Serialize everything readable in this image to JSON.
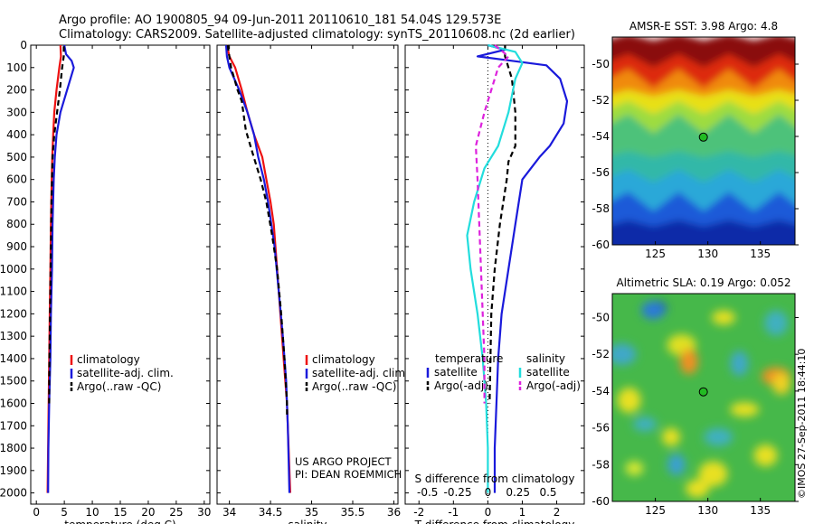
{
  "header": {
    "line1": "Argo profile: AO 1900805_94 09-Jun-2011 20110610_181 54.04S 129.573E",
    "line2": "Climatology: CARS2009. Satellite-adjusted climatology: synTS_20110608.nc (2d earlier)"
  },
  "credits": {
    "project": "US ARGO PROJECT",
    "pi": "PI: DEAN ROEMMICH",
    "stamp": "©IMOS 27-Sep-2011 18:44:10"
  },
  "colors": {
    "climatology": "#ee1111",
    "satellite_adj": "#1a1adb",
    "argo": "#000000",
    "sat_salinity": "#22dddd",
    "argo_salinity": "#dd22dd",
    "marker": "#22bb22"
  },
  "chart_data": [
    {
      "id": "temperature",
      "type": "line",
      "xlabel": "temperature (deg C)",
      "ylabel": "",
      "xlim": [
        -1,
        31
      ],
      "ylim": [
        2050,
        0
      ],
      "xticks": [
        0,
        5,
        10,
        15,
        20,
        25,
        30
      ],
      "yticks": [
        0,
        100,
        200,
        300,
        400,
        500,
        600,
        700,
        800,
        900,
        1000,
        1100,
        1200,
        1300,
        1400,
        1500,
        1600,
        1700,
        1800,
        1900,
        2000
      ],
      "legend": [
        "climatology",
        "satellite-adj. clim.",
        "Argo(..raw -QC)"
      ],
      "series": [
        {
          "name": "climatology",
          "style": "solid",
          "color": "#ee1111",
          "x": [
            4.3,
            4.4,
            4.1,
            3.6,
            3.2,
            3.0,
            2.85,
            2.75,
            2.6,
            2.5,
            2.4,
            2.3,
            2.2,
            2.1,
            2.0
          ],
          "y": [
            0,
            50,
            100,
            200,
            300,
            400,
            500,
            600,
            800,
            1000,
            1200,
            1400,
            1600,
            1800,
            2000
          ]
        },
        {
          "name": "satellite-adj. clim.",
          "style": "solid",
          "color": "#1a1adb",
          "x": [
            5.0,
            5.3,
            6.3,
            6.7,
            5.5,
            4.3,
            3.6,
            3.3,
            3.1,
            2.9,
            2.8,
            2.6,
            2.5,
            2.3,
            2.15,
            2.1
          ],
          "y": [
            0,
            40,
            70,
            100,
            200,
            300,
            400,
            500,
            600,
            800,
            1000,
            1200,
            1400,
            1600,
            1800,
            2000
          ]
        },
        {
          "name": "Argo(..raw -QC)",
          "style": "dashed",
          "color": "#000000",
          "x": [
            4.9,
            4.9,
            4.6,
            4.2,
            3.7,
            3.2,
            2.9,
            2.7,
            2.6,
            2.5,
            2.4,
            2.3,
            2.3
          ],
          "y": [
            5,
            50,
            100,
            200,
            300,
            400,
            500,
            700,
            900,
            1100,
            1300,
            1500,
            1600
          ]
        }
      ]
    },
    {
      "id": "salinity",
      "type": "line",
      "xlabel": "salinity",
      "ylabel": "",
      "xlim": [
        33.85,
        36.05
      ],
      "ylim": [
        2050,
        0
      ],
      "xticks": [
        34,
        34.5,
        35,
        35.5,
        36
      ],
      "yticks": [
        0,
        100,
        200,
        300,
        400,
        500,
        600,
        700,
        800,
        900,
        1000,
        1100,
        1200,
        1300,
        1400,
        1500,
        1600,
        1700,
        1800,
        1900,
        2000
      ],
      "legend": [
        "climatology",
        "satellite-adj. clim.",
        "Argo(..raw -QC)"
      ],
      "series": [
        {
          "name": "climatology",
          "style": "solid",
          "color": "#ee1111",
          "x": [
            33.97,
            34.0,
            34.07,
            34.15,
            34.22,
            34.3,
            34.4,
            34.45,
            34.5,
            34.54,
            34.58,
            34.62,
            34.66,
            34.7,
            34.72,
            34.74
          ],
          "y": [
            0,
            50,
            100,
            200,
            300,
            400,
            500,
            600,
            700,
            800,
            1000,
            1200,
            1400,
            1600,
            1800,
            2000
          ]
        },
        {
          "name": "satellite-adj. clim.",
          "style": "solid",
          "color": "#1a1adb",
          "x": [
            33.96,
            33.97,
            34.0,
            34.12,
            34.22,
            34.3,
            34.35,
            34.42,
            34.47,
            34.55,
            34.6,
            34.65,
            34.69,
            34.71,
            34.73
          ],
          "y": [
            0,
            50,
            100,
            200,
            300,
            400,
            500,
            600,
            700,
            900,
            1100,
            1300,
            1500,
            1700,
            2000
          ]
        },
        {
          "name": "Argo(..raw -QC)",
          "style": "dashed",
          "color": "#000000",
          "x": [
            33.98,
            34.0,
            34.02,
            34.1,
            34.15,
            34.2,
            34.28,
            34.38,
            34.45,
            34.52,
            34.58,
            34.63,
            34.67,
            34.7,
            34.7
          ],
          "y": [
            0,
            50,
            100,
            200,
            250,
            380,
            480,
            600,
            700,
            850,
            1000,
            1200,
            1400,
            1600,
            1650
          ]
        }
      ]
    },
    {
      "id": "difference",
      "type": "line",
      "xlabel": "T difference from climatology",
      "xlabel_secondary": "S difference from climatology",
      "xlim": [
        -2.4,
        2.8
      ],
      "ylim": [
        2050,
        0
      ],
      "xticks": [
        -2,
        -1,
        0,
        1,
        2
      ],
      "xticks_secondary": [
        -0.5,
        -0.25,
        0,
        0.25,
        0.5
      ],
      "yticks": [
        0,
        100,
        200,
        300,
        400,
        500,
        600,
        700,
        800,
        900,
        1000,
        1100,
        1200,
        1300,
        1400,
        1500,
        1600,
        1700,
        1800,
        1900,
        2000
      ],
      "legend_titles": [
        "temperature",
        "salinity"
      ],
      "legend": [
        "satellite",
        "Argo(-adj)",
        "satellite",
        "Argo(-adj)"
      ],
      "series": [
        {
          "name": "temperature satellite",
          "style": "solid",
          "color": "#1a1adb",
          "x": [
            0.0,
            0.5,
            -0.3,
            0.7,
            1.7,
            2.1,
            2.3,
            2.2,
            1.8,
            1.5,
            1.0,
            0.8,
            0.6,
            0.4,
            0.3,
            0.25,
            0.2,
            0.2,
            0.2
          ],
          "y": [
            0,
            20,
            50,
            70,
            90,
            150,
            250,
            350,
            450,
            500,
            600,
            800,
            1000,
            1200,
            1400,
            1600,
            1800,
            1950,
            2000
          ]
        },
        {
          "name": "temperature Argo(-adj)",
          "style": "dashed",
          "color": "#000000",
          "x": [
            0.5,
            0.5,
            0.7,
            0.8,
            0.8,
            0.6,
            0.55,
            0.35,
            0.2,
            0.1,
            0.05
          ],
          "y": [
            0,
            50,
            150,
            300,
            450,
            520,
            600,
            800,
            1000,
            1200,
            1600
          ]
        },
        {
          "name": "salinity satellite",
          "style": "solid",
          "color": "#22dddd",
          "x": [
            0.0,
            0.8,
            1.0,
            0.8,
            0.6,
            0.3,
            -0.1,
            -0.4,
            -0.6,
            -0.5,
            -0.3,
            -0.15,
            -0.05,
            0.0,
            0.0
          ],
          "y": [
            0,
            30,
            80,
            150,
            300,
            450,
            550,
            700,
            850,
            1000,
            1200,
            1400,
            1600,
            1800,
            2000
          ]
        },
        {
          "name": "salinity Argo(-adj)",
          "style": "dashed",
          "color": "#dd22dd",
          "x": [
            0.2,
            0.6,
            0.3,
            0.1,
            -0.1,
            -0.35,
            -0.3,
            -0.25,
            -0.2,
            -0.15,
            -0.1,
            -0.1
          ],
          "y": [
            0,
            50,
            100,
            200,
            300,
            450,
            600,
            800,
            1000,
            1200,
            1400,
            1600
          ]
        }
      ]
    },
    {
      "id": "sst_map",
      "type": "heatmap",
      "title": "AMSR-E SST: 3.98 Argo: 4.8",
      "xlim": [
        120.9,
        138.3
      ],
      "ylim": [
        -60,
        -48.5
      ],
      "xticks": [
        125,
        130,
        135
      ],
      "yticks": [
        -50,
        -52,
        -54,
        -56,
        -58,
        -60
      ],
      "argo_position": {
        "lon": 129.573,
        "lat": -54.04
      },
      "bands": [
        {
          "lat_top": -48.5,
          "color": "#8a0a0a"
        },
        {
          "lat_top": -49.8,
          "color": "#dd2a10"
        },
        {
          "lat_top": -50.8,
          "color": "#f08a10"
        },
        {
          "lat_top": -51.6,
          "color": "#e8e018"
        },
        {
          "lat_top": -52.4,
          "color": "#9edc40"
        },
        {
          "lat_top": -53.3,
          "color": "#4ec27a"
        },
        {
          "lat_top": -55.0,
          "color": "#33b8a8"
        },
        {
          "lat_top": -56.2,
          "color": "#2aa8d8"
        },
        {
          "lat_top": -57.6,
          "color": "#1a5ad8"
        },
        {
          "lat_top": -58.8,
          "color": "#0a2aa8"
        }
      ]
    },
    {
      "id": "sla_map",
      "type": "heatmap",
      "title": "Altimetric SLA: 0.19 Argo: 0.052",
      "xlim": [
        120.9,
        138.3
      ],
      "ylim": [
        -60,
        -48.7
      ],
      "xticks": [
        125,
        130,
        135
      ],
      "yticks": [
        -50,
        -52,
        -54,
        -56,
        -58,
        -60
      ],
      "argo_position": {
        "lon": 129.573,
        "lat": -54.04
      },
      "background_color": "#46b84a",
      "blobs": [
        {
          "lon": 125.2,
          "lat": -49.5,
          "color": "#0a1aa8"
        },
        {
          "lon": 124.8,
          "lat": -49.6,
          "color": "#2a7ad8"
        },
        {
          "lon": 127.5,
          "lat": -51.5,
          "color": "#e0e020"
        },
        {
          "lon": 128.2,
          "lat": -52.4,
          "color": "#f09020"
        },
        {
          "lon": 131.5,
          "lat": -50.0,
          "color": "#e8e020"
        },
        {
          "lon": 136.5,
          "lat": -53.2,
          "color": "#f09020"
        },
        {
          "lon": 137.0,
          "lat": -53.6,
          "color": "#f0d020"
        },
        {
          "lon": 122.5,
          "lat": -54.5,
          "color": "#e8e020"
        },
        {
          "lon": 133.5,
          "lat": -55.0,
          "color": "#e8e020"
        },
        {
          "lon": 126.5,
          "lat": -56.5,
          "color": "#e8e020"
        },
        {
          "lon": 135.5,
          "lat": -57.5,
          "color": "#e8e020"
        },
        {
          "lon": 130.5,
          "lat": -58.5,
          "color": "#e8e020"
        },
        {
          "lon": 123.0,
          "lat": -58.2,
          "color": "#d8e830"
        },
        {
          "lon": 129.0,
          "lat": -59.3,
          "color": "#e8e020"
        },
        {
          "lon": 121.8,
          "lat": -52.0,
          "color": "#40a8c8"
        },
        {
          "lon": 133.0,
          "lat": -52.5,
          "color": "#40a8c8"
        },
        {
          "lon": 124.0,
          "lat": -55.8,
          "color": "#40b0c0"
        },
        {
          "lon": 131.0,
          "lat": -56.5,
          "color": "#40b0c0"
        },
        {
          "lon": 127.0,
          "lat": -58.0,
          "color": "#3aa0d0"
        },
        {
          "lon": 136.5,
          "lat": -50.3,
          "color": "#40b0c0"
        }
      ]
    }
  ]
}
